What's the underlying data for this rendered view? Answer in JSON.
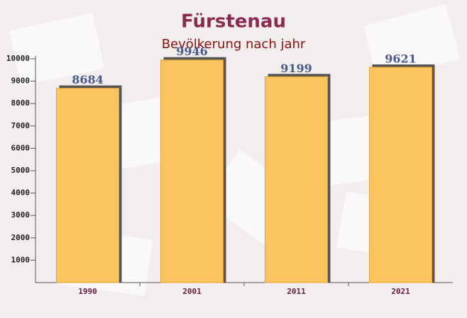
{
  "chart_data": {
    "type": "bar",
    "title": "Fürstenau",
    "subtitle": "Bevölkerung nach jahr",
    "categories": [
      "1990",
      "2001",
      "2011",
      "2021"
    ],
    "values": [
      8684,
      9946,
      9199,
      9621
    ],
    "color": "#fcc45f",
    "ylim": [
      0,
      10000
    ],
    "yticks": [
      1000,
      2000,
      3000,
      4000,
      5000,
      6000,
      7000,
      8000,
      9000,
      10000
    ],
    "grid": false
  }
}
